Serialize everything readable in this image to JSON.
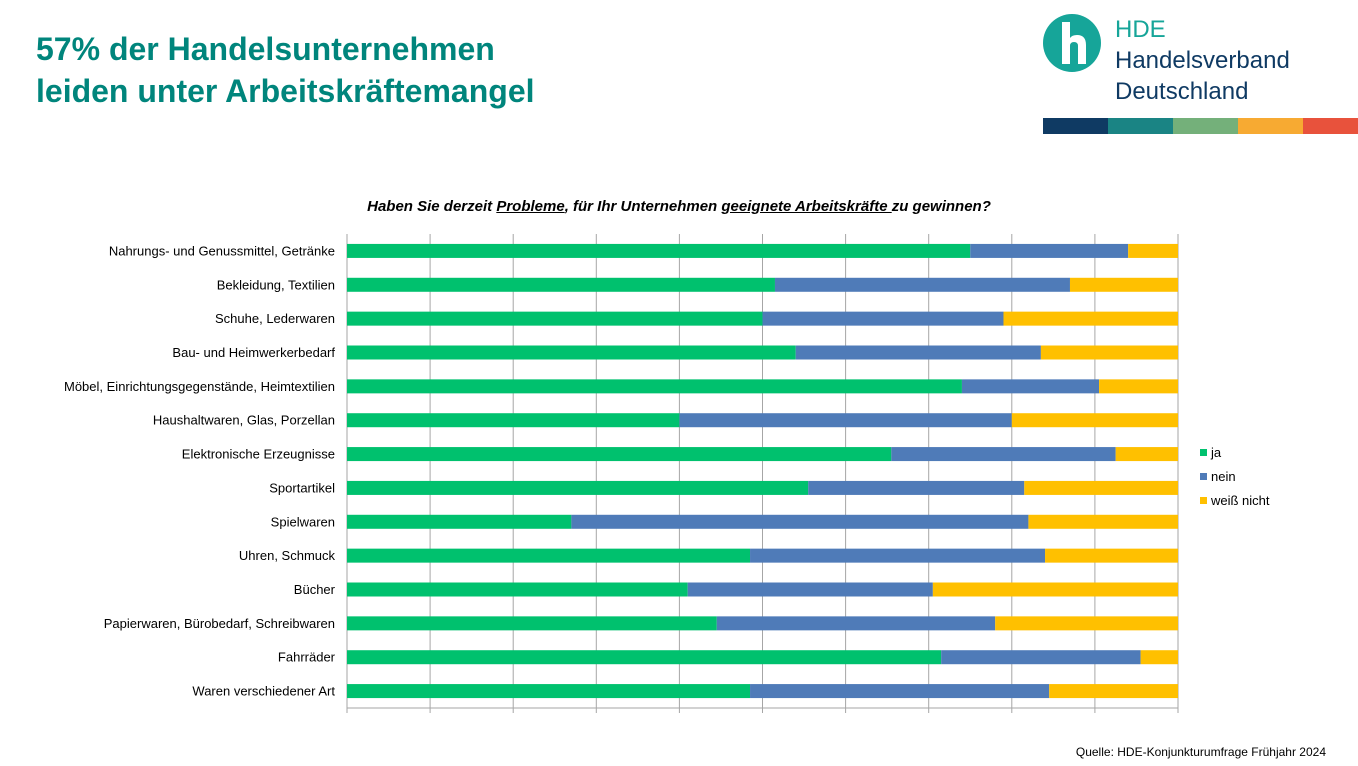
{
  "title": {
    "line1": "57% der Handelsunternehmen",
    "line2": "leiden unter Arbeitskräftemangel"
  },
  "logo": {
    "line1": "HDE",
    "line2": "Handelsverband",
    "line3": "Deutschland",
    "colors": [
      "#0f3a63",
      "#1a8484",
      "#74b07a",
      "#f7aa32",
      "#e8523c"
    ]
  },
  "question": {
    "pre": "Haben Sie derzeit ",
    "u1": "Probleme",
    "mid": ", für Ihr Unternehmen ",
    "u2": "geeignete Arbeitskräfte ",
    "post": "zu gewinnen?"
  },
  "chart_data": {
    "type": "bar",
    "orientation": "horizontal",
    "stacked": "percent",
    "categories": [
      "Nahrungs- und Genussmittel, Getränke",
      "Bekleidung, Textilien",
      "Schuhe, Lederwaren",
      "Bau- und Heimwerkerbedarf",
      "Möbel, Einrichtungsgegenstände, Heimtextilien",
      "Haushaltwaren, Glas, Porzellan",
      "Elektronische Erzeugnisse",
      "Sportartikel",
      "Spielwaren",
      "Uhren, Schmuck",
      "Bücher",
      "Papierwaren, Bürobedarf, Schreibwaren",
      "Fahrräder",
      "Waren verschiedener Art"
    ],
    "series": [
      {
        "name": "ja",
        "color": "#00c16e",
        "values": [
          75,
          51.5,
          50,
          54,
          74,
          40,
          65.5,
          55.5,
          27,
          48.5,
          41,
          44.5,
          71.5,
          48.5
        ]
      },
      {
        "name": "nein",
        "color": "#4f7bb8",
        "values": [
          19,
          35.5,
          29,
          29.5,
          16.5,
          40,
          27,
          26,
          55,
          35.5,
          29.5,
          33.5,
          24,
          36
        ]
      },
      {
        "name": "weiß nicht",
        "color": "#ffc000",
        "values": [
          6,
          13,
          21,
          16.5,
          9.5,
          20,
          7.5,
          18.5,
          18,
          16,
          29.5,
          22,
          4.5,
          15.5
        ]
      }
    ],
    "xlim": [
      0,
      100
    ],
    "grid": true,
    "legend_position": "right"
  },
  "source": "Quelle: HDE-Konjunkturumfrage Frühjahr 2024"
}
